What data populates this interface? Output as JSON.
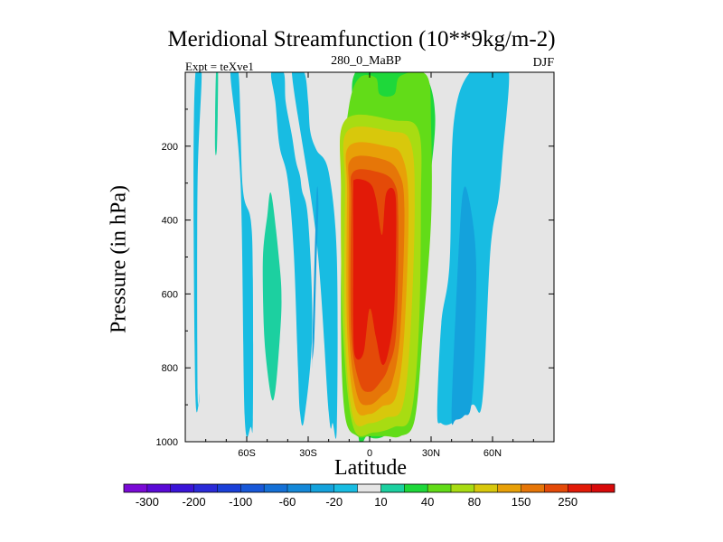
{
  "chart_data": {
    "type": "heatmap",
    "title": "Meridional Streamfunction (10**9kg/m-2)",
    "subtitle_left": "Expt = teXve1",
    "subtitle_center": "280_0_MaBP",
    "subtitle_right": "DJF",
    "xlabel": "Latitude",
    "ylabel": "Pressure (in hPa)",
    "xlim": [
      -90,
      90
    ],
    "ylim": [
      1000,
      0
    ],
    "y_inverted": true,
    "x_ticks": [
      -60,
      -30,
      0,
      30,
      60
    ],
    "x_tick_labels": [
      "60S",
      "30S",
      "0",
      "30N",
      "60N"
    ],
    "y_ticks": [
      200,
      400,
      600,
      800,
      1000
    ],
    "y_tick_labels": [
      "200",
      "400",
      "600",
      "800",
      "1000"
    ],
    "levels": [
      -300,
      -250,
      -200,
      -150,
      -100,
      -80,
      -60,
      -40,
      -20,
      -10,
      10,
      20,
      40,
      60,
      80,
      100,
      150,
      200,
      250,
      300
    ],
    "colorbar_labels": [
      "-300",
      "-200",
      "-100",
      "-60",
      "-20",
      "10",
      "40",
      "80",
      "150",
      "250"
    ],
    "colors": [
      "#7a0ad6",
      "#5a0ad6",
      "#3a14d8",
      "#2a2ad8",
      "#1a40d8",
      "#1858d8",
      "#1470d6",
      "#1488d8",
      "#14a2dc",
      "#18bce2",
      "#e5e5e5",
      "#1cd0a0",
      "#1ed83a",
      "#62dc18",
      "#a8dc12",
      "#d8c80c",
      "#e8a008",
      "#e67608",
      "#e44a08",
      "#e21a08",
      "#d80a0a"
    ],
    "missing_color": "#e5e5e5",
    "regions": [
      {
        "value": 20,
        "lat": [
          -7,
          9,
          12,
          26,
          32,
          28,
          23,
          15,
          7,
          -1,
          -6,
          -8
        ],
        "p": [
          0,
          0,
          0,
          0,
          120,
          360,
          640,
          930,
          985,
          985,
          940,
          200
        ]
      },
      {
        "value": 40,
        "lat": [
          -10,
          -5,
          3,
          5,
          12,
          15,
          28,
          30,
          30,
          26,
          22,
          15,
          8,
          0,
          -6,
          -12,
          -14,
          -13
        ],
        "p": [
          90,
          15,
          15,
          60,
          60,
          10,
          10,
          150,
          400,
          700,
          940,
          985,
          985,
          985,
          985,
          930,
          680,
          280
        ]
      },
      {
        "value": 60,
        "lat": [
          -12,
          12,
          24,
          25,
          24,
          20,
          12,
          2,
          -8,
          -13,
          -14
        ],
        "p": [
          130,
          130,
          160,
          360,
          700,
          930,
          960,
          975,
          960,
          700,
          320
        ]
      },
      {
        "value": 80,
        "lat": [
          -11,
          10,
          20,
          22,
          20,
          16,
          8,
          0,
          -8,
          -12,
          -12
        ],
        "p": [
          160,
          160,
          190,
          360,
          700,
          905,
          935,
          950,
          935,
          700,
          320
        ]
      },
      {
        "value": 100,
        "lat": [
          -10,
          8,
          16,
          19,
          17,
          13,
          6,
          0,
          -7,
          -11,
          -11
        ],
        "p": [
          200,
          200,
          230,
          360,
          700,
          875,
          905,
          925,
          905,
          700,
          330
        ]
      },
      {
        "value": 150,
        "lat": [
          -9,
          6,
          14,
          17,
          15,
          11,
          6,
          0,
          -6,
          -10,
          -10
        ],
        "p": [
          235,
          235,
          270,
          370,
          700,
          840,
          875,
          900,
          875,
          700,
          340
        ]
      },
      {
        "value": 200,
        "lat": [
          -8,
          4,
          12,
          14,
          13,
          9,
          5,
          0,
          -5,
          -9,
          -9
        ],
        "p": [
          270,
          270,
          300,
          390,
          700,
          800,
          840,
          865,
          840,
          700,
          360
        ]
      },
      {
        "value": 250,
        "lat": [
          -7,
          0,
          3,
          6,
          8,
          12,
          13,
          12,
          9,
          6,
          3,
          0,
          -3,
          -7,
          -8,
          -8,
          -8
        ],
        "p": [
          290,
          300,
          340,
          440,
          330,
          320,
          400,
          640,
          760,
          790,
          715,
          640,
          760,
          770,
          690,
          480,
          320
        ]
      },
      {
        "value": -20,
        "lat": [
          -85,
          -82,
          -84,
          -84,
          -83,
          -85,
          -86
        ],
        "p": [
          0,
          0,
          300,
          860,
          870,
          880,
          300
        ]
      },
      {
        "value": -20,
        "lat": [
          -68,
          -64,
          -62,
          -58,
          -57,
          -57,
          -58,
          -61,
          -63
        ],
        "p": [
          0,
          0,
          310,
          400,
          560,
          940,
          960,
          930,
          300
        ]
      },
      {
        "value": -20,
        "lat": [
          -38,
          -32,
          -30,
          -29,
          -26,
          -20,
          -16,
          -16,
          -18,
          -20,
          -26
        ],
        "p": [
          0,
          0,
          80,
          160,
          210,
          270,
          500,
          960,
          950,
          920,
          450
        ]
      },
      {
        "value": -20,
        "lat": [
          -48,
          -42,
          -41,
          -38,
          -36,
          -34,
          -33,
          -30,
          -28,
          -32,
          -34,
          -35,
          -37,
          -40,
          -44,
          -46
        ],
        "p": [
          0,
          0,
          80,
          170,
          240,
          280,
          320,
          400,
          700,
          940,
          920,
          800,
          490,
          290,
          200,
          80
        ]
      },
      {
        "value": -20,
        "lat": [
          33,
          35,
          39,
          41,
          49,
          61,
          68,
          65,
          63,
          59,
          55,
          50,
          40,
          35
        ],
        "p": [
          920,
          680,
          520,
          140,
          0,
          0,
          0,
          220,
          340,
          480,
          890,
          900,
          950,
          950
        ]
      },
      {
        "value": -40,
        "lat": [
          40,
          42,
          45,
          48,
          52,
          50,
          46,
          42
        ],
        "p": [
          930,
          650,
          350,
          330,
          520,
          880,
          930,
          940
        ]
      },
      {
        "value": -40,
        "lat": [
          -28,
          -26,
          -25,
          -26,
          -27,
          -28
        ],
        "p": [
          760,
          340,
          360,
          520,
          720,
          780
        ]
      },
      {
        "value": 10,
        "lat": [
          -52,
          -50,
          -48,
          -44,
          -43,
          -44,
          -46,
          -48,
          -51,
          -52
        ],
        "p": [
          490,
          390,
          330,
          520,
          620,
          730,
          860,
          880,
          750,
          620
        ]
      },
      {
        "value": 10,
        "lat": [
          -75,
          -74,
          -74.5,
          -75.5
        ],
        "p": [
          0,
          0,
          200,
          200
        ]
      }
    ]
  }
}
